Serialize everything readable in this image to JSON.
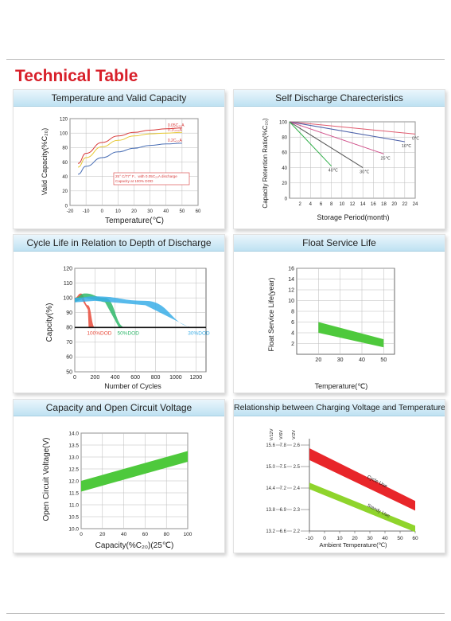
{
  "page": {
    "title": "Technical Table"
  },
  "colors": {
    "title": "#d8202a",
    "header_top": "#eaf6fc",
    "header_bottom": "#bfe2f2",
    "band_green": "#4ec93c",
    "band_red": "#e8262a",
    "band_lime": "#8fd42c"
  },
  "chart_data": [
    {
      "id": "temp-capacity",
      "type": "line",
      "title": "Temperature and Valid Capacity",
      "xlabel": "Temperature(℃)",
      "ylabel": "Valid Capacity(%C₂₀)",
      "xlim": [
        -20,
        60
      ],
      "ylim": [
        0,
        120
      ],
      "xticks": [
        "-20",
        "-10",
        "0",
        "10",
        "20",
        "30",
        "40",
        "50",
        "60"
      ],
      "yticks": [
        "0",
        "20",
        "40",
        "60",
        "80",
        "100",
        "120"
      ],
      "grid": true,
      "note": [
        "25° C/77° F、with 0.05C₂₀A discharge",
        "Capacity at 100% DOD"
      ],
      "series": [
        {
          "name": "0.05C₂₀A",
          "color": "#d83a3a",
          "x": [
            -15,
            -10,
            0,
            10,
            20,
            30,
            40,
            50
          ],
          "y": [
            58,
            72,
            87,
            96,
            101,
            104,
            106,
            107
          ]
        },
        {
          "name": "0.1C₂₀A",
          "color": "#e7c832",
          "x": [
            -15,
            -10,
            0,
            10,
            20,
            30,
            40,
            50
          ],
          "y": [
            53,
            66,
            81,
            90,
            96,
            99,
            100,
            101
          ]
        },
        {
          "name": "0.2C₂₀A",
          "color": "#4a6fb5",
          "x": [
            -15,
            -10,
            0,
            10,
            20,
            30,
            40,
            50
          ],
          "y": [
            43,
            54,
            66,
            74,
            79,
            83,
            85,
            86
          ]
        }
      ]
    },
    {
      "id": "self-discharge",
      "type": "line",
      "title": "Self Discharge Charecteristics",
      "xlabel": "Storage Period(month)",
      "ylabel": "Capacity Retention Ratio(%C₂₀)",
      "xlim": [
        0,
        24
      ],
      "ylim": [
        0,
        100
      ],
      "xticks": [
        "2",
        "4",
        "6",
        "8",
        "10",
        "12",
        "14",
        "16",
        "18",
        "20",
        "22",
        "24"
      ],
      "yticks": [
        "0",
        "20",
        "40",
        "60",
        "80",
        "100"
      ],
      "grid": true,
      "series": [
        {
          "name": "0℃",
          "color": "#e05a6e",
          "x": [
            0,
            24
          ],
          "y": [
            100,
            84
          ]
        },
        {
          "name": "10℃",
          "color": "#4a5fa8",
          "x": [
            0,
            22
          ],
          "y": [
            100,
            74
          ]
        },
        {
          "name": "25℃",
          "color": "#d0508a",
          "x": [
            0,
            18
          ],
          "y": [
            100,
            58
          ]
        },
        {
          "name": "30℃",
          "color": "#555555",
          "x": [
            0,
            14
          ],
          "y": [
            100,
            40
          ]
        },
        {
          "name": "40℃",
          "color": "#32b04a",
          "x": [
            0,
            8
          ],
          "y": [
            100,
            42
          ]
        }
      ]
    },
    {
      "id": "cycle-life",
      "type": "area",
      "title": "Cycle Life in Relation to Depth of Discharge",
      "xlabel": "Number of Cycles",
      "ylabel": "Capcity(%)",
      "xlim": [
        0,
        1300
      ],
      "ylim": [
        50,
        120
      ],
      "xticks": [
        "0",
        "200",
        "400",
        "600",
        "800",
        "1000",
        "1200"
      ],
      "yticks": [
        "50",
        "60",
        "70",
        "80",
        "90",
        "100",
        "110",
        "120"
      ],
      "grid": true,
      "series": [
        {
          "name": "100%DOD",
          "color": "#e84a3a",
          "x": [
            0,
            60,
            130,
            200
          ],
          "y": [
            100,
            103,
            95,
            80
          ]
        },
        {
          "name": "50%DOD",
          "color": "#2eb86a",
          "x": [
            0,
            100,
            300,
            500
          ],
          "y": [
            100,
            103,
            100,
            80
          ]
        },
        {
          "name": "30%DOD",
          "color": "#3aaee8",
          "x": [
            0,
            200,
            700,
            1200
          ],
          "y": [
            100,
            101,
            98,
            80
          ]
        }
      ]
    },
    {
      "id": "float-life",
      "type": "area",
      "title": "Float Service Life",
      "xlabel": "Temperature(℃)",
      "ylabel": "Float Service Life(year)",
      "xlim": [
        10,
        55
      ],
      "ylim": [
        0,
        16
      ],
      "xticks": [
        "20",
        "30",
        "40",
        "50"
      ],
      "yticks": [
        "2",
        "4",
        "6",
        "8",
        "10",
        "12",
        "14",
        "16"
      ],
      "grid": true,
      "series": [
        {
          "name": "upper",
          "x": [
            20,
            50
          ],
          "y": [
            6.0,
            2.8
          ]
        },
        {
          "name": "lower",
          "x": [
            20,
            50
          ],
          "y": [
            4.0,
            1.3
          ]
        }
      ]
    },
    {
      "id": "capacity-ocv",
      "type": "area",
      "title": "Capacity and Open Circuit Voltage",
      "xlabel": "Capacity(%C₂₀)(25℃)",
      "ylabel": "Open Circuit Voltage(V)",
      "xlim": [
        0,
        100
      ],
      "ylim": [
        10.0,
        14.0
      ],
      "xticks": [
        "0",
        "20",
        "40",
        "60",
        "80",
        "100"
      ],
      "yticks": [
        "10.0",
        "10.5",
        "11.0",
        "11.5",
        "12.0",
        "12.5",
        "13.0",
        "13.5",
        "14.0"
      ],
      "grid": true,
      "series": [
        {
          "name": "upper",
          "x": [
            0,
            100
          ],
          "y": [
            12.0,
            13.25
          ]
        },
        {
          "name": "lower",
          "x": [
            0,
            100
          ],
          "y": [
            11.55,
            12.8
          ]
        }
      ]
    },
    {
      "id": "charge-voltage",
      "type": "area",
      "title": "Relationship between Charging Voltage and Temperature",
      "xlabel": "Ambient Temperature(℃)",
      "ylabel": "",
      "xlim": [
        -10,
        60
      ],
      "ylim": [
        2.2,
        2.6
      ],
      "xticks": [
        "-10",
        "0",
        "10",
        "20",
        "30",
        "40",
        "50",
        "60"
      ],
      "y_axes_headers": [
        "V/12V",
        "V/6V",
        "V/2V"
      ],
      "y_rows": [
        {
          "v12": "15.6",
          "v6": "7.8",
          "v2": "2.6"
        },
        {
          "v12": "15.0",
          "v6": "7.5",
          "v2": "2.5"
        },
        {
          "v12": "14.4",
          "v6": "7.2",
          "v2": "2.4"
        },
        {
          "v12": "13.8",
          "v6": "6.9",
          "v2": "2.3"
        },
        {
          "v12": "13.2",
          "v6": "6.6",
          "v2": "2.2"
        }
      ],
      "series": [
        {
          "name": "Cycle Use",
          "color": "#e8262a",
          "upper": [
            2.585,
            2.34
          ],
          "lower": [
            2.53,
            2.295
          ]
        },
        {
          "name": "Standy Use",
          "color": "#8fd42c",
          "upper": [
            2.425,
            2.225
          ],
          "lower": [
            2.395,
            2.195
          ]
        }
      ]
    }
  ]
}
